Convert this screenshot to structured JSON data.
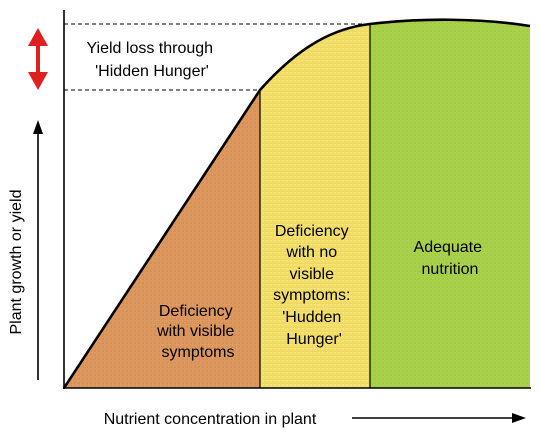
{
  "diagram": {
    "axes": {
      "y_label": "Plant growth or yield",
      "x_label": "Nutrient concentration in plant"
    },
    "yield_loss_note": {
      "line1": "Yield loss through",
      "line2": "'Hidden Hunger'"
    },
    "zones": [
      {
        "lines": [
          "Deficiency",
          "with visible",
          "symptoms"
        ],
        "fill": "#d9935a"
      },
      {
        "lines": [
          "Deficiency",
          "with no",
          "visible",
          "symptoms:",
          "'Hudden",
          "Hunger'"
        ],
        "fill": "#f2e06a"
      },
      {
        "lines": [
          "Adequate",
          "nutrition"
        ],
        "fill": "#a8d24a"
      }
    ],
    "colors": {
      "yield_loss_arrow": "#e02020",
      "axis": "#000000",
      "curve": "#000000"
    }
  }
}
